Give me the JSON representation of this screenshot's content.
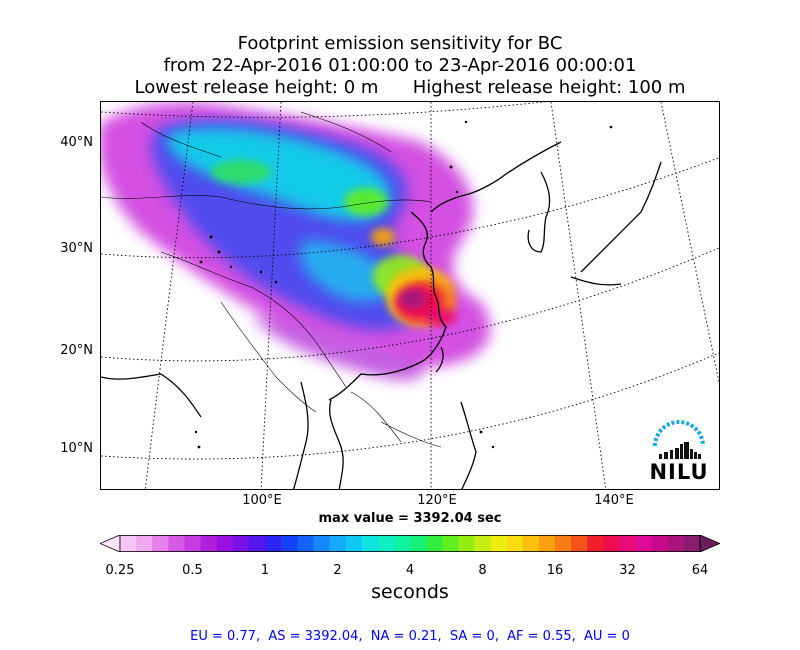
{
  "title": {
    "line1": "Footprint emission sensitivity for BC",
    "line2": "from 22-Apr-2016 01:00:00 to 23-Apr-2016 00:00:01",
    "line3a": "Lowest release height: 0 m",
    "line3b": "Highest release height: 100 m"
  },
  "axes": {
    "lat_labels": [
      "40°N",
      "30°N",
      "20°N",
      "10°N"
    ],
    "lon_labels": [
      "100°E",
      "120°E",
      "140°E"
    ]
  },
  "max_value": "max value = 3392.04 sec",
  "colorbar": {
    "ticks": [
      "0.25",
      "0.5",
      "1",
      "2",
      "4",
      "8",
      "16",
      "32",
      "64"
    ],
    "label": "seconds",
    "colors": [
      "#ffe6ff",
      "#f7c6f7",
      "#f0a8f0",
      "#e680ea",
      "#d65ae6",
      "#c63ce0",
      "#b020dc",
      "#9a10e0",
      "#7a10e8",
      "#5418ee",
      "#2c24f2",
      "#1440f6",
      "#1464f8",
      "#1488fa",
      "#14aafa",
      "#10c8f2",
      "#10e2e2",
      "#10eec8",
      "#10f2a0",
      "#14f078",
      "#30ee40",
      "#60ee20",
      "#94ee14",
      "#c4ee14",
      "#ecee10",
      "#fadc10",
      "#fac010",
      "#f8a010",
      "#f67c14",
      "#f45418",
      "#f2202c",
      "#ee0c50",
      "#e80a76",
      "#dc0a96",
      "#c80a8a",
      "#a8147c",
      "#8a1c6e",
      "#6a1e60"
    ]
  },
  "stats": "EU = 0.77,  AS = 3392.04,  NA = 0.21,  SA = 0,  AF = 0.55,  AU = 0",
  "logo": {
    "text": "NILU",
    "arc_color": "#1aa8e0"
  }
}
